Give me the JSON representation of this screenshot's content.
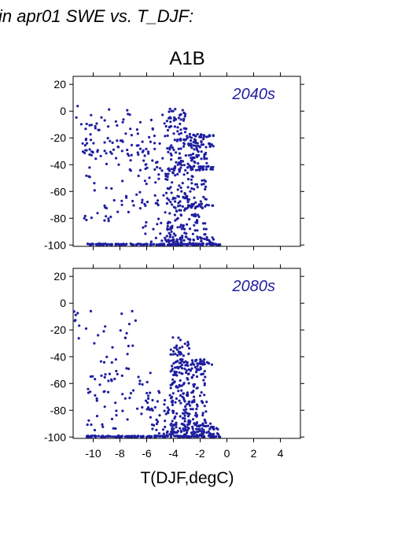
{
  "heading": "in apr01 SWE vs. T_DJF:",
  "scenario": "A1B",
  "xlabel": "T(DJF,degC)",
  "point_color": "#1e1ea0",
  "chart_data": [
    {
      "type": "scatter",
      "label": "2040s",
      "xlim": [
        -11.5,
        5.5
      ],
      "ylim": [
        -101,
        26
      ],
      "xticks": [
        -10,
        -8,
        -6,
        -4,
        -2,
        0,
        2,
        4
      ],
      "yticks": [
        20,
        0,
        -20,
        -40,
        -60,
        -80,
        -100
      ],
      "show_xtick_labels": false,
      "clusters": [
        {
          "x": [
            -11.3,
            -6.6
          ],
          "y": [
            -35,
            4
          ],
          "n": 55
        },
        {
          "x": [
            -10.8,
            -6.0
          ],
          "y": [
            -82,
            -20
          ],
          "n": 70
        },
        {
          "x": [
            -6.5,
            -4.5
          ],
          "y": [
            -98,
            -2
          ],
          "n": 60
        },
        {
          "x": [
            -4.5,
            -3.0
          ],
          "y": [
            -98,
            2
          ],
          "n": 190
        },
        {
          "x": [
            -3.0,
            -1.5
          ],
          "y": [
            -98,
            -18
          ],
          "n": 120
        },
        {
          "x": [
            -3.0,
            -1.0
          ],
          "y": [
            -20,
            -17
          ],
          "n": 25
        },
        {
          "x": [
            -3.0,
            -1.0
          ],
          "y": [
            -27,
            -24
          ],
          "n": 22
        },
        {
          "x": [
            -3.0,
            -1.0
          ],
          "y": [
            -44,
            -41
          ],
          "n": 22
        },
        {
          "x": [
            -3.0,
            -1.0
          ],
          "y": [
            -72,
            -69
          ],
          "n": 18
        },
        {
          "x": [
            -10.5,
            -0.4
          ],
          "y": [
            -100,
            -99
          ],
          "n": 160
        },
        {
          "x": [
            -5.0,
            -0.5
          ],
          "y": [
            -100,
            -94
          ],
          "n": 50
        }
      ]
    },
    {
      "type": "scatter",
      "label": "2080s",
      "xlim": [
        -11.5,
        5.5
      ],
      "ylim": [
        -101,
        26
      ],
      "xticks": [
        -10,
        -8,
        -6,
        -4,
        -2,
        0,
        2,
        4
      ],
      "yticks": [
        20,
        0,
        -20,
        -40,
        -60,
        -80,
        -100
      ],
      "show_xtick_labels": true,
      "clusters": [
        {
          "x": [
            -11.5,
            -6.8
          ],
          "y": [
            -60,
            -5
          ],
          "n": 40
        },
        {
          "x": [
            -10.5,
            -5.5
          ],
          "y": [
            -95,
            -50
          ],
          "n": 50
        },
        {
          "x": [
            -6.0,
            -4.0
          ],
          "y": [
            -98,
            -65
          ],
          "n": 40
        },
        {
          "x": [
            -4.2,
            -2.8
          ],
          "y": [
            -98,
            -25
          ],
          "n": 160
        },
        {
          "x": [
            -3.0,
            -1.5
          ],
          "y": [
            -98,
            -42
          ],
          "n": 90
        },
        {
          "x": [
            -2.8,
            -1.1
          ],
          "y": [
            -46,
            -42
          ],
          "n": 25
        },
        {
          "x": [
            -10.5,
            -0.4
          ],
          "y": [
            -100,
            -99
          ],
          "n": 150
        },
        {
          "x": [
            -4.5,
            -0.5
          ],
          "y": [
            -100,
            -90
          ],
          "n": 80
        }
      ]
    }
  ]
}
